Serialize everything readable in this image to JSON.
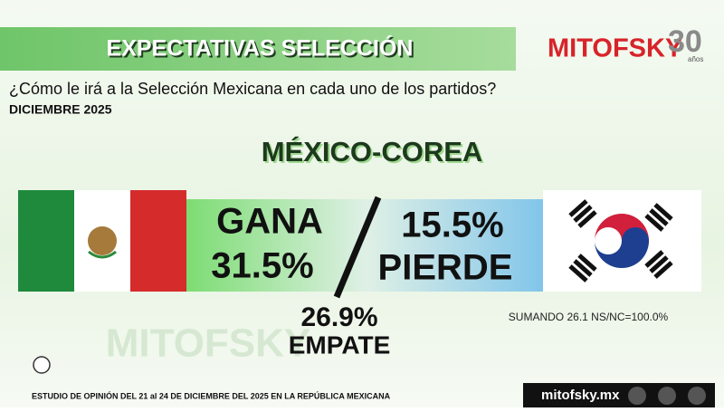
{
  "header": {
    "title": "EXPECTATIVAS SELECCIÓN",
    "question": "¿Cómo le irá a la Selección Mexicana en cada uno de los partidos?",
    "date": "DICIEMBRE 2025"
  },
  "logo": {
    "brand": "MITOFSKY",
    "anniversary": "30",
    "years": "años"
  },
  "match": {
    "title": "MÉXICO-COREA",
    "win": {
      "label": "GANA",
      "value": "31.5%"
    },
    "lose": {
      "label": "PIERDE",
      "value": "15.5%"
    },
    "draw": {
      "label": "EMPATE",
      "value": "26.9%"
    },
    "note": "SUMANDO 26.1 NS/NC=100.0%"
  },
  "footer": {
    "study": "ESTUDIO DE OPINIÓN DEL 21 al 24 DE DICIEMBRE DEL 2025 EN LA REPÚBLICA MEXICANA",
    "website": "mitofsky.mx"
  }
}
